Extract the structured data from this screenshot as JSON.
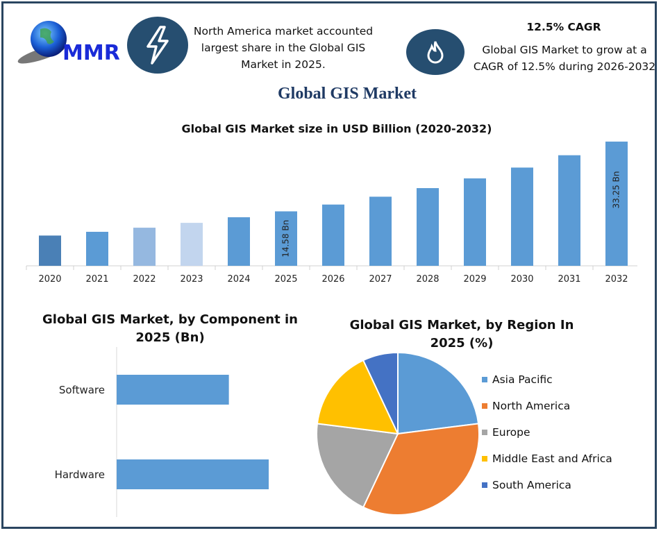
{
  "header": {
    "logo_text": "MMR",
    "callout_left": {
      "icon": "lightning-icon",
      "text": "North America market accounted largest share in the Global GIS Market in 2025."
    },
    "callout_right": {
      "icon": "flame-icon",
      "heading": "12.5% CAGR",
      "text": "Global GIS Market to grow at a CAGR of 12.5% during 2026-2032"
    },
    "main_title": "Global GIS Market"
  },
  "colors": {
    "frame": "#2a4560",
    "icon_circle": "#264e70",
    "bar": "#5b9bd5",
    "title": "#1f3a64"
  },
  "chart_data": [
    {
      "type": "bar",
      "title": "Global GIS Market size in USD Billion (2020-2032)",
      "categories": [
        "2020",
        "2021",
        "2022",
        "2023",
        "2024",
        "2025",
        "2026",
        "2027",
        "2028",
        "2029",
        "2030",
        "2031",
        "2032"
      ],
      "values": [
        8.1,
        9.1,
        10.2,
        11.5,
        13.0,
        14.58,
        16.4,
        18.5,
        20.8,
        23.4,
        26.3,
        29.6,
        33.25
      ],
      "bar_colors": [
        "#4a80b6",
        "#5b9bd5",
        "#95b8e0",
        "#c2d5ee",
        "#5b9bd5",
        "#5b9bd5",
        "#5b9bd5",
        "#5b9bd5",
        "#5b9bd5",
        "#5b9bd5",
        "#5b9bd5",
        "#5b9bd5",
        "#5b9bd5"
      ],
      "data_labels": {
        "2025": "14.58 Bn",
        "2032": "33.25 Bn"
      },
      "ylim": [
        0,
        34
      ],
      "grid": false
    },
    {
      "type": "bar",
      "orientation": "horizontal",
      "title": "Global GIS Market, by Component in 2025 (Bn)",
      "categories": [
        "Software",
        "Hardware"
      ],
      "values": [
        6.2,
        8.4
      ],
      "grid": false
    },
    {
      "type": "pie",
      "title": "Global GIS Market, by Region In 2025 (%)",
      "labels": [
        "Asia Pacific",
        "North America",
        "Europe",
        "Middle East and Africa",
        "South America"
      ],
      "values": [
        23,
        34,
        20,
        16,
        7
      ],
      "colors": [
        "#5b9bd5",
        "#ed7d31",
        "#a5a5a5",
        "#ffc000",
        "#4472c4"
      ],
      "legend": "right"
    }
  ]
}
